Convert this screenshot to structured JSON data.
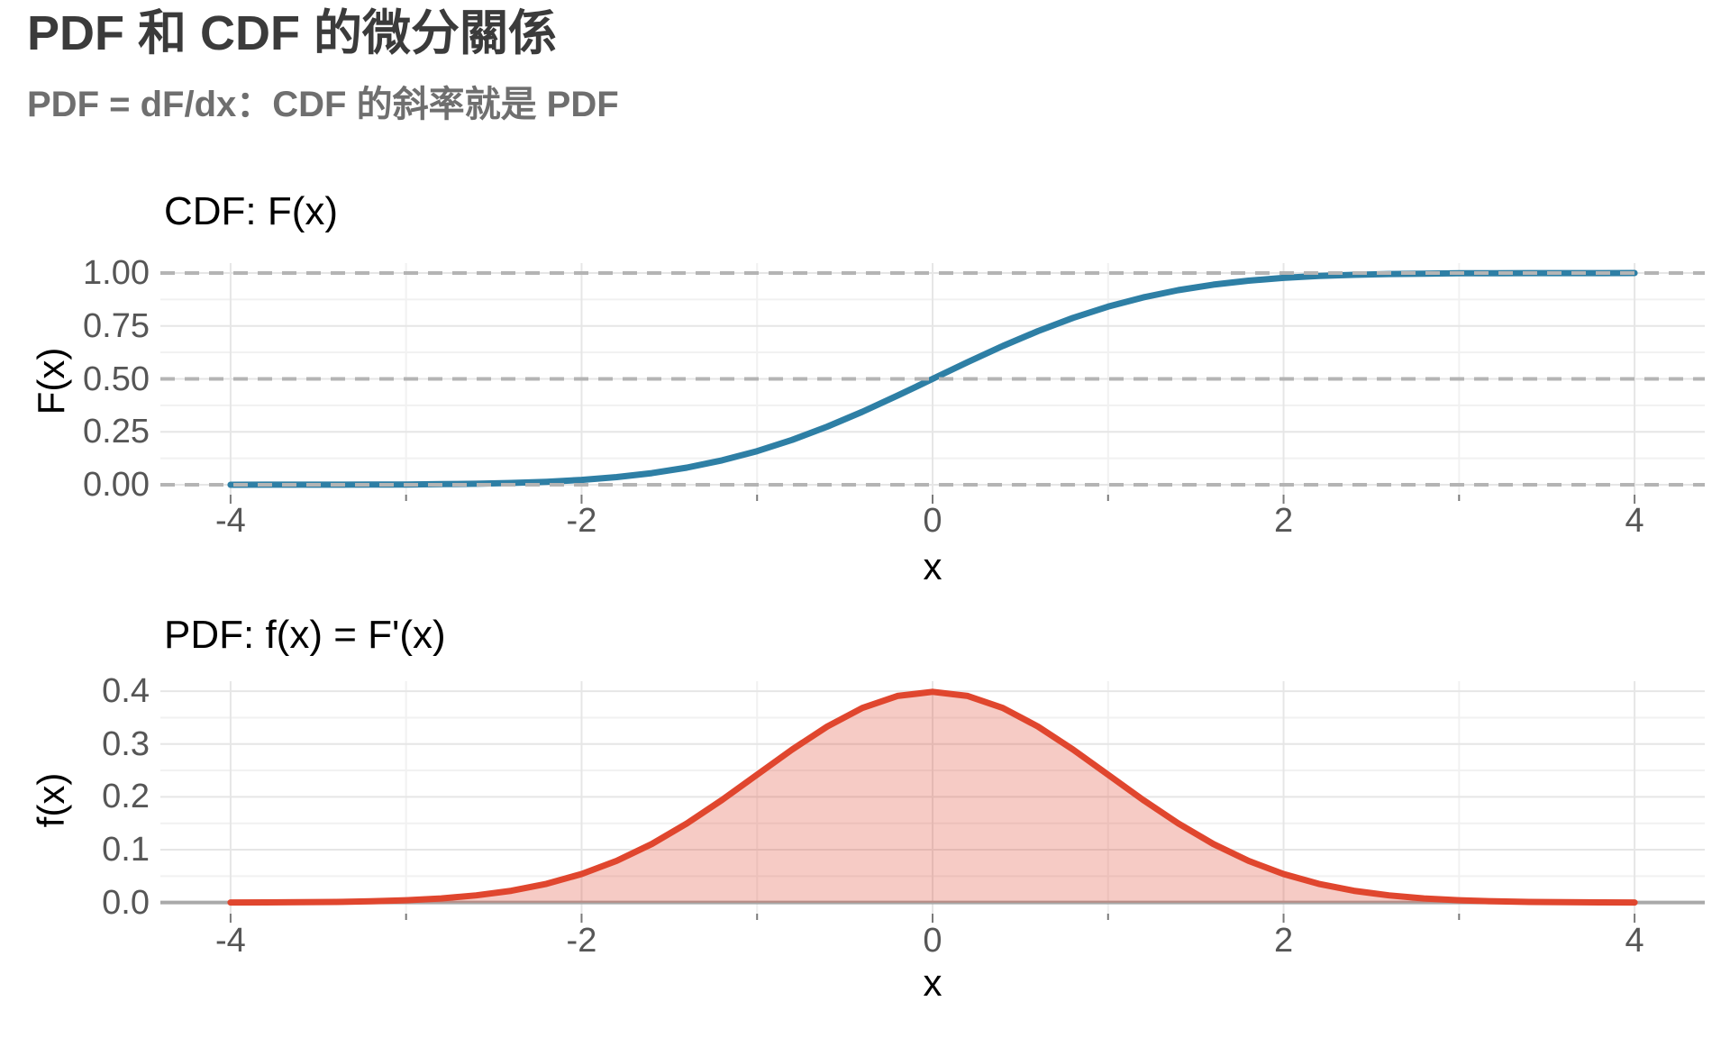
{
  "header": {
    "title": "PDF 和 CDF 的微分關係",
    "subtitle": "PDF = dF/dx：CDF 的斜率就是 PDF"
  },
  "colors": {
    "title_text": "#3b3b3b",
    "subtitle_text": "#6f6f6f",
    "panel_title_text": "#000000",
    "tick_text": "#565656",
    "grid_major": "#e6e6e6",
    "grid_minor": "#f1f1f1",
    "dashed_ref_line": "#b4b4b4",
    "zero_line": "#a9a9a9",
    "tick_mark": "#7a7a7a",
    "cdf_line": "#2e7fa5",
    "pdf_line": "#e0462e",
    "pdf_fill": "rgba(224,70,46,0.28)"
  },
  "chart_data": [
    {
      "type": "line",
      "title": "CDF: F(x)",
      "xlabel": "x",
      "ylabel": "F(x)",
      "legend": "none",
      "grid": "major+minor",
      "xlim": [
        -4,
        4
      ],
      "ylim": [
        0,
        1
      ],
      "x_tick_values": [
        -4,
        -2,
        0,
        2,
        4
      ],
      "x_tick_labels": [
        "-4",
        "-2",
        "0",
        "2",
        "4"
      ],
      "x_minor_ticks": [
        -3,
        -1,
        1,
        3
      ],
      "y_tick_values": [
        0,
        0.25,
        0.5,
        0.75,
        1.0
      ],
      "y_tick_labels": [
        "0.00",
        "0.25",
        "0.50",
        "0.75",
        "1.00"
      ],
      "y_minor_ticks": [
        0.125,
        0.375,
        0.625,
        0.875
      ],
      "ref_lines_dashed": [
        0,
        0.5,
        1.0
      ],
      "ref_lines_solid": [],
      "line_color": "#2e7fa5",
      "fill": false,
      "x": [
        -4,
        -3.8,
        -3.6,
        -3.4,
        -3.2,
        -3,
        -2.8,
        -2.6,
        -2.4,
        -2.2,
        -2,
        -1.8,
        -1.6,
        -1.4,
        -1.2,
        -1,
        -0.8,
        -0.6,
        -0.4,
        -0.2,
        0,
        0.2,
        0.4,
        0.6,
        0.8,
        1,
        1.2,
        1.4,
        1.6,
        1.8,
        2,
        2.2,
        2.4,
        2.6,
        2.8,
        3,
        3.2,
        3.4,
        3.6,
        3.8,
        4
      ],
      "y": [
        3e-05,
        0.0001,
        0.0002,
        0.0003,
        0.0007,
        0.0013,
        0.0026,
        0.0047,
        0.0082,
        0.0139,
        0.0228,
        0.0359,
        0.0548,
        0.0808,
        0.1151,
        0.1587,
        0.2119,
        0.2743,
        0.3446,
        0.4207,
        0.5,
        0.5793,
        0.6554,
        0.7257,
        0.7881,
        0.8413,
        0.8849,
        0.9192,
        0.9452,
        0.9641,
        0.9772,
        0.9861,
        0.9918,
        0.9953,
        0.9974,
        0.9987,
        0.9993,
        0.9997,
        0.9998,
        0.9999,
        0.99997
      ]
    },
    {
      "type": "area",
      "title": "PDF: f(x) = F'(x)",
      "xlabel": "x",
      "ylabel": "f(x)",
      "legend": "none",
      "grid": "major+minor",
      "xlim": [
        -4,
        4
      ],
      "ylim": [
        0,
        0.4
      ],
      "x_tick_values": [
        -4,
        -2,
        0,
        2,
        4
      ],
      "x_tick_labels": [
        "-4",
        "-2",
        "0",
        "2",
        "4"
      ],
      "x_minor_ticks": [
        -3,
        -1,
        1,
        3
      ],
      "y_tick_values": [
        0,
        0.1,
        0.2,
        0.3,
        0.4
      ],
      "y_tick_labels": [
        "0.0",
        "0.1",
        "0.2",
        "0.3",
        "0.4"
      ],
      "y_minor_ticks": [
        0.05,
        0.15,
        0.25,
        0.35
      ],
      "ref_lines_dashed": [],
      "ref_lines_solid": [
        0
      ],
      "line_color": "#e0462e",
      "fill": true,
      "fill_color": "rgba(224,70,46,0.28)",
      "x": [
        -4,
        -3.8,
        -3.6,
        -3.4,
        -3.2,
        -3,
        -2.8,
        -2.6,
        -2.4,
        -2.2,
        -2,
        -1.8,
        -1.6,
        -1.4,
        -1.2,
        -1,
        -0.8,
        -0.6,
        -0.4,
        -0.2,
        0,
        0.2,
        0.4,
        0.6,
        0.8,
        1,
        1.2,
        1.4,
        1.6,
        1.8,
        2,
        2.2,
        2.4,
        2.6,
        2.8,
        3,
        3.2,
        3.4,
        3.6,
        3.8,
        4
      ],
      "y": [
        0.0001,
        0.0003,
        0.0006,
        0.0012,
        0.0024,
        0.0044,
        0.0079,
        0.0136,
        0.0224,
        0.0355,
        0.054,
        0.079,
        0.1109,
        0.1497,
        0.1942,
        0.242,
        0.2897,
        0.3332,
        0.3683,
        0.391,
        0.3989,
        0.391,
        0.3683,
        0.3332,
        0.2897,
        0.242,
        0.1942,
        0.1497,
        0.1109,
        0.079,
        0.054,
        0.0355,
        0.0224,
        0.0136,
        0.0079,
        0.0044,
        0.0024,
        0.0012,
        0.0006,
        0.0003,
        0.0001
      ]
    }
  ]
}
